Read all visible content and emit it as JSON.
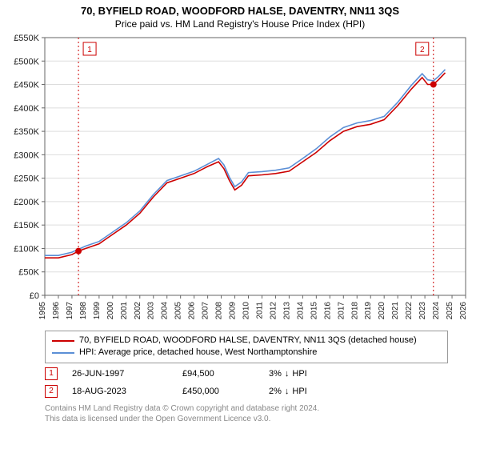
{
  "title": "70, BYFIELD ROAD, WOODFORD HALSE, DAVENTRY, NN11 3QS",
  "subtitle": "Price paid vs. HM Land Registry's House Price Index (HPI)",
  "title_fontsize": 13,
  "subtitle_fontsize": 12,
  "colors": {
    "series_property": "#cc0000",
    "series_hpi": "#5b8fd6",
    "axis_text": "#222222",
    "tick": "#666666",
    "grid": "#dddddd",
    "background": "#ffffff",
    "marker_ref": "#cc0000",
    "footnote": "#888888",
    "legend_border": "#999999"
  },
  "chart": {
    "type": "line",
    "y": {
      "min": 0,
      "max": 550000,
      "step": 50000,
      "prefix": "£",
      "suffix": "K",
      "divisor": 1000,
      "label_fontsize": 11
    },
    "x": {
      "min": 1995,
      "max": 2026,
      "step": 1,
      "label_fontsize": 10
    },
    "line_width": 1.6,
    "series": [
      {
        "key": "property",
        "label": "70, BYFIELD ROAD, WOODFORD HALSE, DAVENTRY, NN11 3QS (detached house)",
        "color_key": "series_property",
        "points": [
          [
            1995.0,
            80000
          ],
          [
            1996.0,
            80000
          ],
          [
            1997.0,
            87000
          ],
          [
            1997.48,
            94500
          ],
          [
            1998.0,
            100000
          ],
          [
            1999.0,
            110000
          ],
          [
            2000.0,
            130000
          ],
          [
            2001.0,
            150000
          ],
          [
            2002.0,
            175000
          ],
          [
            2003.0,
            210000
          ],
          [
            2004.0,
            240000
          ],
          [
            2005.0,
            250000
          ],
          [
            2006.0,
            260000
          ],
          [
            2007.0,
            275000
          ],
          [
            2007.8,
            285000
          ],
          [
            2008.2,
            270000
          ],
          [
            2008.6,
            245000
          ],
          [
            2009.0,
            225000
          ],
          [
            2009.5,
            235000
          ],
          [
            2010.0,
            255000
          ],
          [
            2011.0,
            257000
          ],
          [
            2012.0,
            260000
          ],
          [
            2013.0,
            265000
          ],
          [
            2014.0,
            285000
          ],
          [
            2015.0,
            305000
          ],
          [
            2016.0,
            330000
          ],
          [
            2017.0,
            350000
          ],
          [
            2018.0,
            360000
          ],
          [
            2019.0,
            365000
          ],
          [
            2020.0,
            375000
          ],
          [
            2021.0,
            405000
          ],
          [
            2022.0,
            440000
          ],
          [
            2022.8,
            465000
          ],
          [
            2023.2,
            450000
          ],
          [
            2023.63,
            450000
          ],
          [
            2024.0,
            460000
          ],
          [
            2024.5,
            475000
          ]
        ]
      },
      {
        "key": "hpi",
        "label": "HPI: Average price, detached house, West Northamptonshire",
        "color_key": "series_hpi",
        "points": [
          [
            1995.0,
            85000
          ],
          [
            1996.0,
            85000
          ],
          [
            1997.0,
            92000
          ],
          [
            1998.0,
            105000
          ],
          [
            1999.0,
            115000
          ],
          [
            2000.0,
            135000
          ],
          [
            2001.0,
            155000
          ],
          [
            2002.0,
            180000
          ],
          [
            2003.0,
            215000
          ],
          [
            2004.0,
            245000
          ],
          [
            2005.0,
            255000
          ],
          [
            2006.0,
            265000
          ],
          [
            2007.0,
            280000
          ],
          [
            2007.8,
            292000
          ],
          [
            2008.2,
            278000
          ],
          [
            2008.6,
            252000
          ],
          [
            2009.0,
            232000
          ],
          [
            2009.5,
            242000
          ],
          [
            2010.0,
            262000
          ],
          [
            2011.0,
            264000
          ],
          [
            2012.0,
            267000
          ],
          [
            2013.0,
            272000
          ],
          [
            2014.0,
            292000
          ],
          [
            2015.0,
            313000
          ],
          [
            2016.0,
            338000
          ],
          [
            2017.0,
            358000
          ],
          [
            2018.0,
            368000
          ],
          [
            2019.0,
            373000
          ],
          [
            2020.0,
            382000
          ],
          [
            2021.0,
            412000
          ],
          [
            2022.0,
            448000
          ],
          [
            2022.8,
            473000
          ],
          [
            2023.2,
            460000
          ],
          [
            2023.63,
            458000
          ],
          [
            2024.0,
            467000
          ],
          [
            2024.5,
            482000
          ]
        ]
      }
    ],
    "markers": [
      {
        "n": 1,
        "x": 1997.48,
        "y": 94500
      },
      {
        "n": 2,
        "x": 2023.63,
        "y": 450000
      }
    ]
  },
  "legend": {
    "fontsize": 11
  },
  "sales": [
    {
      "n": "1",
      "date": "26-JUN-1997",
      "price": "£94,500",
      "diff_pct": "3%",
      "diff_dir": "↓",
      "diff_label": "HPI"
    },
    {
      "n": "2",
      "date": "18-AUG-2023",
      "price": "£450,000",
      "diff_pct": "2%",
      "diff_dir": "↓",
      "diff_label": "HPI"
    }
  ],
  "footnote_line1": "Contains HM Land Registry data © Crown copyright and database right 2024.",
  "footnote_line2": "This data is licensed under the Open Government Licence v3.0."
}
